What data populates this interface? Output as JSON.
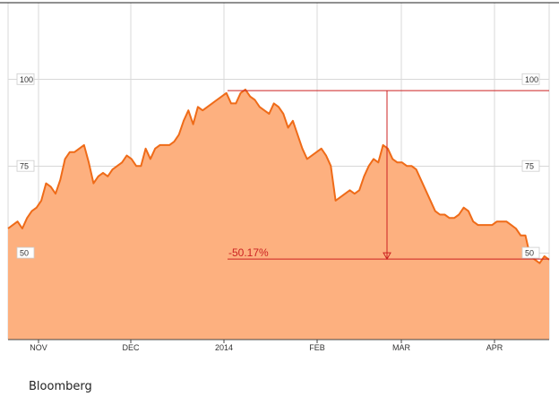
{
  "chart_data": {
    "type": "area",
    "title": "",
    "xlabel": "",
    "ylabel": "",
    "x_tick_labels": [
      "NOV",
      "DEC",
      "2014",
      "FEB",
      "MAR",
      "APR"
    ],
    "y_ticks": [
      50,
      75,
      100
    ],
    "ylim": [
      25,
      122
    ],
    "grid": true,
    "colors": {
      "fill": "#fdb07f",
      "line": "#ef6b18",
      "annotation": "#cc2222",
      "grid": "#d8d8d8"
    },
    "series": [
      {
        "values": [
          57,
          58,
          59,
          57,
          60,
          62,
          63,
          65,
          70,
          69,
          67,
          71,
          77,
          79,
          79,
          80,
          81,
          76,
          70,
          72,
          73,
          72,
          74,
          75,
          76,
          78,
          77,
          75,
          75,
          80,
          77,
          80,
          81,
          81,
          81,
          82,
          84,
          88,
          91,
          87,
          92,
          91,
          92,
          93,
          94,
          95,
          96,
          93,
          93,
          96,
          97,
          95,
          94,
          92,
          91,
          90,
          93,
          92,
          90,
          86,
          88,
          84,
          80,
          77,
          78,
          79,
          80,
          78,
          75,
          65,
          66,
          67,
          68,
          67,
          68,
          72,
          75,
          77,
          76,
          81,
          80,
          77,
          76,
          76,
          75,
          75,
          74,
          71,
          68,
          65,
          62,
          61,
          61,
          60,
          60,
          61,
          63,
          62,
          59,
          58,
          58,
          58,
          58,
          59,
          59,
          59,
          58,
          57,
          55,
          55,
          49,
          48,
          47,
          49,
          48
        ]
      }
    ],
    "annotations": {
      "peak_value": 96.7,
      "trough_value": 48.2,
      "change_label": "-50.17%"
    }
  },
  "source": "Bloomberg"
}
